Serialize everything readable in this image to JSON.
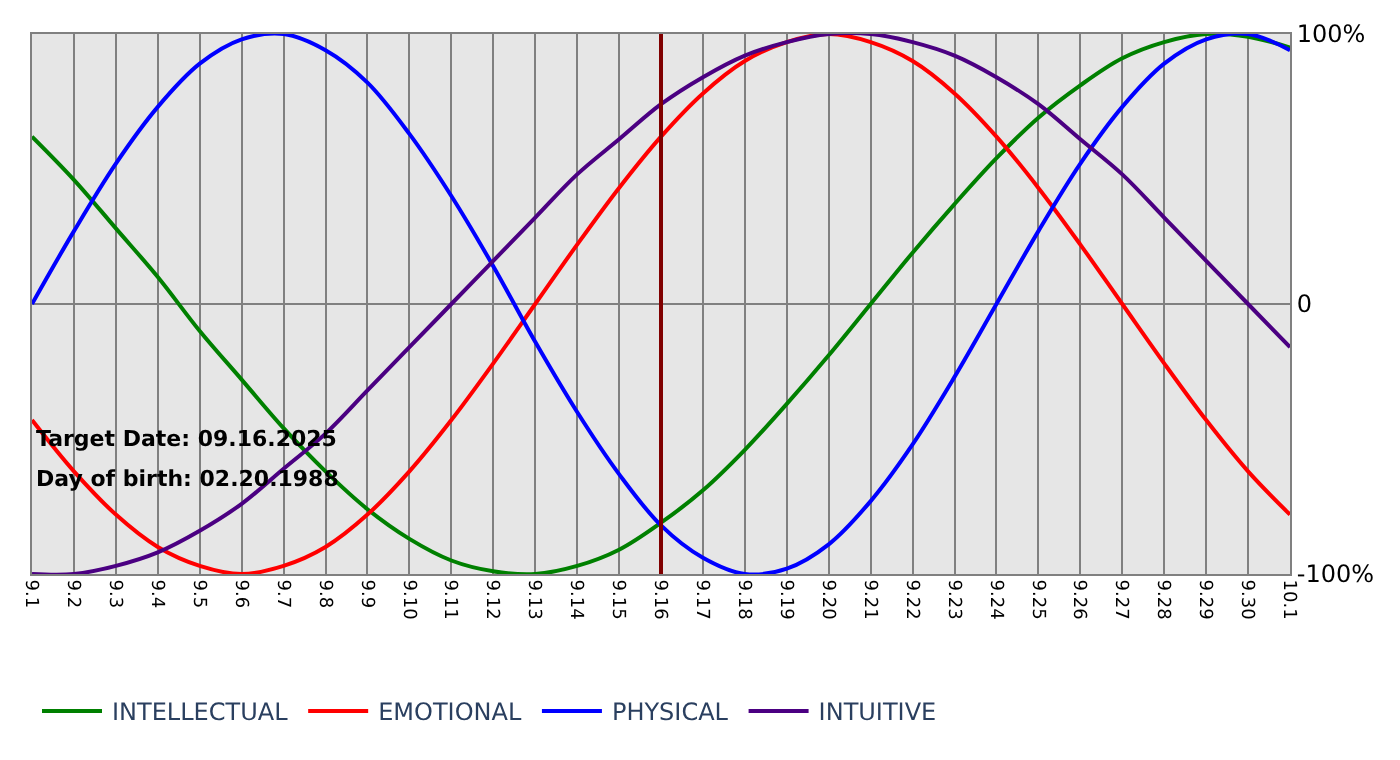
{
  "chart_data": {
    "type": "line",
    "categories": [
      "9.1",
      "9.2",
      "9.3",
      "9.4",
      "9.5",
      "9.6",
      "9.7",
      "9.8",
      "9.9",
      "9.10",
      "9.11",
      "9.12",
      "9.13",
      "9.14",
      "9.15",
      "9.16",
      "9.17",
      "9.18",
      "9.19",
      "9.20",
      "9.21",
      "9.22",
      "9.23",
      "9.24",
      "9.25",
      "9.26",
      "9.27",
      "9.28",
      "9.29",
      "9.30",
      "10.1"
    ],
    "series": [
      {
        "name": "INTELLECTUAL",
        "color": "#008000",
        "values": [
          62,
          46,
          28,
          10,
          -10,
          -28,
          -46,
          -62,
          -76,
          -87,
          -95,
          -99,
          -100,
          -97,
          -91,
          -81,
          -69,
          -54,
          -37,
          -19,
          0,
          19,
          37,
          54,
          69,
          81,
          91,
          97,
          100,
          99,
          95
        ]
      },
      {
        "name": "EMOTIONAL",
        "color": "#ff0000",
        "values": [
          -43,
          -62,
          -78,
          -90,
          -97,
          -100,
          -97,
          -90,
          -78,
          -62,
          -43,
          -22,
          0,
          22,
          43,
          62,
          78,
          90,
          97,
          100,
          97,
          90,
          78,
          62,
          43,
          22,
          0,
          -22,
          -43,
          -62,
          -78
        ]
      },
      {
        "name": "PHYSICAL",
        "color": "#0000ff",
        "values": [
          0,
          27,
          52,
          73,
          89,
          98,
          100,
          94,
          82,
          63,
          40,
          14,
          -14,
          -40,
          -63,
          -82,
          -94,
          -100,
          -98,
          -89,
          -73,
          -52,
          -27,
          0,
          27,
          52,
          73,
          89,
          98,
          100,
          94
        ]
      },
      {
        "name": "INTUITIVE",
        "color": "#4b0082",
        "values": [
          -100,
          -100,
          -97,
          -92,
          -84,
          -74,
          -61,
          -48,
          -32,
          -16,
          0,
          16,
          32,
          48,
          61,
          74,
          84,
          92,
          97,
          100,
          100,
          97,
          92,
          84,
          74,
          61,
          48,
          32,
          16,
          0,
          -16
        ]
      }
    ],
    "ylim": [
      -100,
      100
    ],
    "yticks": [
      {
        "value": 100,
        "label": "100%"
      },
      0,
      {
        "value": -100,
        "label": "-100%"
      }
    ],
    "grid": true,
    "legend": "bottom left",
    "marker": "none",
    "line_style": "solid",
    "ref_lines": [
      {
        "axis": "x",
        "value": "9.16",
        "color": "#800000"
      }
    ],
    "annotations": [
      "Target Date: 09.16.2025",
      "Day of birth: 02.20.1988"
    ]
  }
}
